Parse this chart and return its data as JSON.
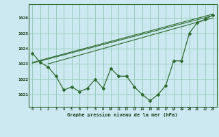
{
  "title": "Graphe pression niveau de la mer (hPa)",
  "bg_color": "#cce8f0",
  "grid_color": "#99ccbb",
  "line_color": "#2d6a2d",
  "x_ticks": [
    0,
    1,
    2,
    3,
    4,
    5,
    6,
    7,
    8,
    9,
    10,
    11,
    12,
    13,
    14,
    15,
    16,
    17,
    18,
    19,
    20,
    21,
    22,
    23
  ],
  "y_ticks": [
    1021,
    1022,
    1023,
    1024,
    1025,
    1026
  ],
  "ylim": [
    1020.2,
    1026.9
  ],
  "xlim": [
    -0.5,
    23.5
  ],
  "main_series": [
    1023.7,
    1023.1,
    1022.8,
    1022.2,
    1021.3,
    1021.5,
    1021.2,
    1021.4,
    1022.0,
    1021.4,
    1022.7,
    1022.2,
    1022.2,
    1021.5,
    1021.0,
    1020.6,
    1021.0,
    1021.6,
    1023.2,
    1023.2,
    1025.0,
    1025.7,
    1025.9,
    1026.2
  ],
  "line1_x": [
    0,
    23
  ],
  "line1_y": [
    1023.1,
    1026.25
  ],
  "line2_x": [
    0,
    23
  ],
  "line2_y": [
    1023.05,
    1026.15
  ],
  "line3_x": [
    2,
    23
  ],
  "line3_y": [
    1023.0,
    1026.0
  ]
}
